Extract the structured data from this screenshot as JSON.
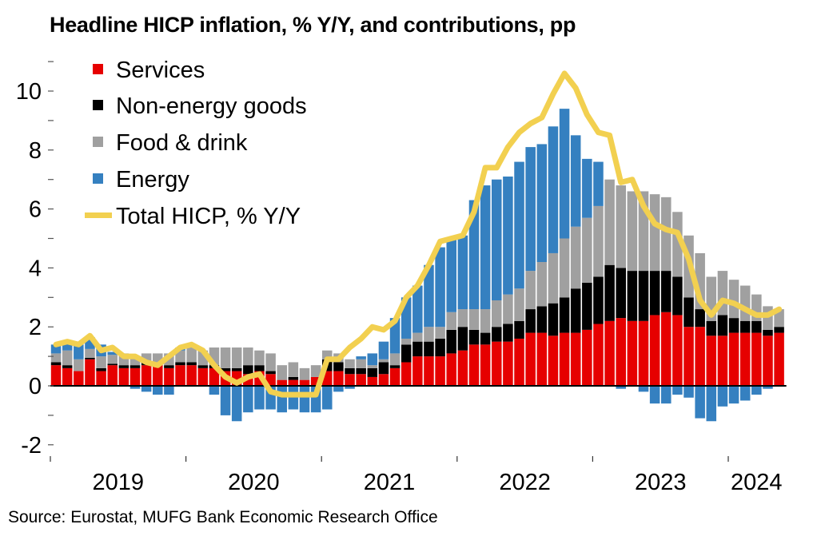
{
  "title": "Headline HICP inflation, % Y/Y, and contributions, pp",
  "source": "Source: Eurostat, MUFG Bank Economic Research Office",
  "chart_data": {
    "type": "bar",
    "stacked": true,
    "title": "Headline HICP inflation, % Y/Y, and contributions, pp",
    "xlabel": "",
    "ylabel": "",
    "ylim": [
      -2.5,
      11.5
    ],
    "yticks": [
      -2,
      0,
      2,
      4,
      6,
      8,
      10
    ],
    "year_labels": [
      "2019",
      "2020",
      "2021",
      "2022",
      "2023",
      "2024"
    ],
    "frequency": "monthly",
    "start": "2019-01",
    "end": "2024-05",
    "legend_position": "top-left",
    "colors": {
      "services": "#e60000",
      "non_energy_goods": "#000000",
      "food_drink": "#a0a0a0",
      "energy": "#3580c0",
      "total": "#f2d050"
    },
    "series": [
      {
        "key": "services",
        "name": "Services",
        "kind": "bar",
        "values": [
          0.7,
          0.6,
          0.5,
          0.9,
          0.5,
          0.7,
          0.6,
          0.6,
          0.7,
          0.7,
          0.6,
          0.7,
          0.7,
          0.6,
          0.6,
          0.5,
          0.5,
          0.4,
          0.5,
          0.4,
          0.2,
          0.2,
          0.2,
          0.3,
          0.5,
          0.5,
          0.4,
          0.4,
          0.3,
          0.4,
          0.6,
          0.8,
          1.0,
          1.0,
          1.0,
          1.1,
          1.2,
          1.4,
          1.4,
          1.5,
          1.5,
          1.6,
          1.8,
          1.8,
          1.7,
          1.8,
          1.8,
          1.9,
          2.1,
          2.2,
          2.3,
          2.2,
          2.2,
          2.4,
          2.5,
          2.4,
          2.0,
          2.0,
          1.7,
          1.7,
          1.8,
          1.8,
          1.8,
          1.7,
          1.8
        ]
      },
      {
        "key": "non_energy_goods",
        "name": "Non-energy goods",
        "kind": "bar",
        "values": [
          0.1,
          0.1,
          0.0,
          0.05,
          0.1,
          0.05,
          0.1,
          0.1,
          0.1,
          0.1,
          0.1,
          0.1,
          0.1,
          0.1,
          0.1,
          0.1,
          0.1,
          0.3,
          0.2,
          0.1,
          0.0,
          0.1,
          0.0,
          0.0,
          0.4,
          0.3,
          0.2,
          0.2,
          0.3,
          0.4,
          0.1,
          0.6,
          0.5,
          0.5,
          0.6,
          0.8,
          0.8,
          0.5,
          0.4,
          0.5,
          0.6,
          0.6,
          0.8,
          0.9,
          1.1,
          1.2,
          1.5,
          1.6,
          1.6,
          1.9,
          1.7,
          1.7,
          1.7,
          1.5,
          1.4,
          1.3,
          1.0,
          0.6,
          0.5,
          0.7,
          0.5,
          0.4,
          0.4,
          0.2,
          0.2
        ]
      },
      {
        "key": "food_drink",
        "name": "Food & drink",
        "kind": "bar",
        "values": [
          0.3,
          0.5,
          0.4,
          0.3,
          0.4,
          0.3,
          0.4,
          0.3,
          0.3,
          0.3,
          0.4,
          0.4,
          0.5,
          0.5,
          0.6,
          0.7,
          0.7,
          0.6,
          0.5,
          0.6,
          0.5,
          0.5,
          0.4,
          0.4,
          0.3,
          0.3,
          0.3,
          0.3,
          0.1,
          0.1,
          0.4,
          0.2,
          0.3,
          0.5,
          0.4,
          0.6,
          0.6,
          0.7,
          0.8,
          0.9,
          1.0,
          1.1,
          1.3,
          1.5,
          1.7,
          2.0,
          2.1,
          2.2,
          2.4,
          2.9,
          2.8,
          2.7,
          2.7,
          2.6,
          2.5,
          2.2,
          2.1,
          1.9,
          1.5,
          1.5,
          1.3,
          1.2,
          0.9,
          0.8,
          0.6
        ]
      },
      {
        "key": "energy",
        "name": "Energy",
        "kind": "bar",
        "values": [
          0.3,
          0.3,
          0.5,
          0.4,
          0.4,
          0.1,
          0.0,
          -0.1,
          -0.2,
          -0.3,
          -0.3,
          0.1,
          0.1,
          0.0,
          -0.3,
          -1.0,
          -1.2,
          -0.9,
          -0.8,
          -0.8,
          -0.9,
          -0.8,
          -0.9,
          -0.9,
          -0.8,
          -0.2,
          -0.1,
          0.1,
          0.4,
          0.6,
          1.2,
          1.4,
          1.6,
          2.1,
          2.7,
          2.5,
          2.5,
          3.7,
          4.2,
          4.1,
          4.0,
          4.3,
          4.2,
          4.0,
          4.3,
          4.4,
          3.1,
          2.0,
          1.5,
          0.0,
          -0.1,
          0.0,
          -0.2,
          -0.6,
          -0.6,
          -0.3,
          -0.4,
          -1.1,
          -1.2,
          -0.7,
          -0.6,
          -0.5,
          -0.3,
          -0.1,
          0.0
        ]
      },
      {
        "key": "total",
        "name": "Total HICP, % Y/Y",
        "kind": "line",
        "values": [
          1.4,
          1.5,
          1.4,
          1.7,
          1.2,
          1.3,
          1.0,
          1.0,
          0.8,
          0.7,
          1.0,
          1.3,
          1.4,
          1.2,
          0.7,
          0.3,
          0.1,
          0.3,
          0.4,
          -0.2,
          -0.3,
          -0.3,
          -0.3,
          -0.3,
          0.9,
          0.9,
          1.3,
          1.6,
          2.0,
          1.9,
          2.2,
          3.0,
          3.4,
          4.1,
          4.9,
          5.0,
          5.1,
          5.9,
          7.4,
          7.4,
          8.1,
          8.6,
          8.9,
          9.1,
          9.9,
          10.6,
          10.1,
          9.2,
          8.6,
          8.5,
          6.9,
          7.0,
          6.1,
          5.5,
          5.3,
          5.2,
          4.3,
          2.9,
          2.4,
          2.9,
          2.8,
          2.6,
          2.4,
          2.4,
          2.6
        ]
      }
    ]
  }
}
